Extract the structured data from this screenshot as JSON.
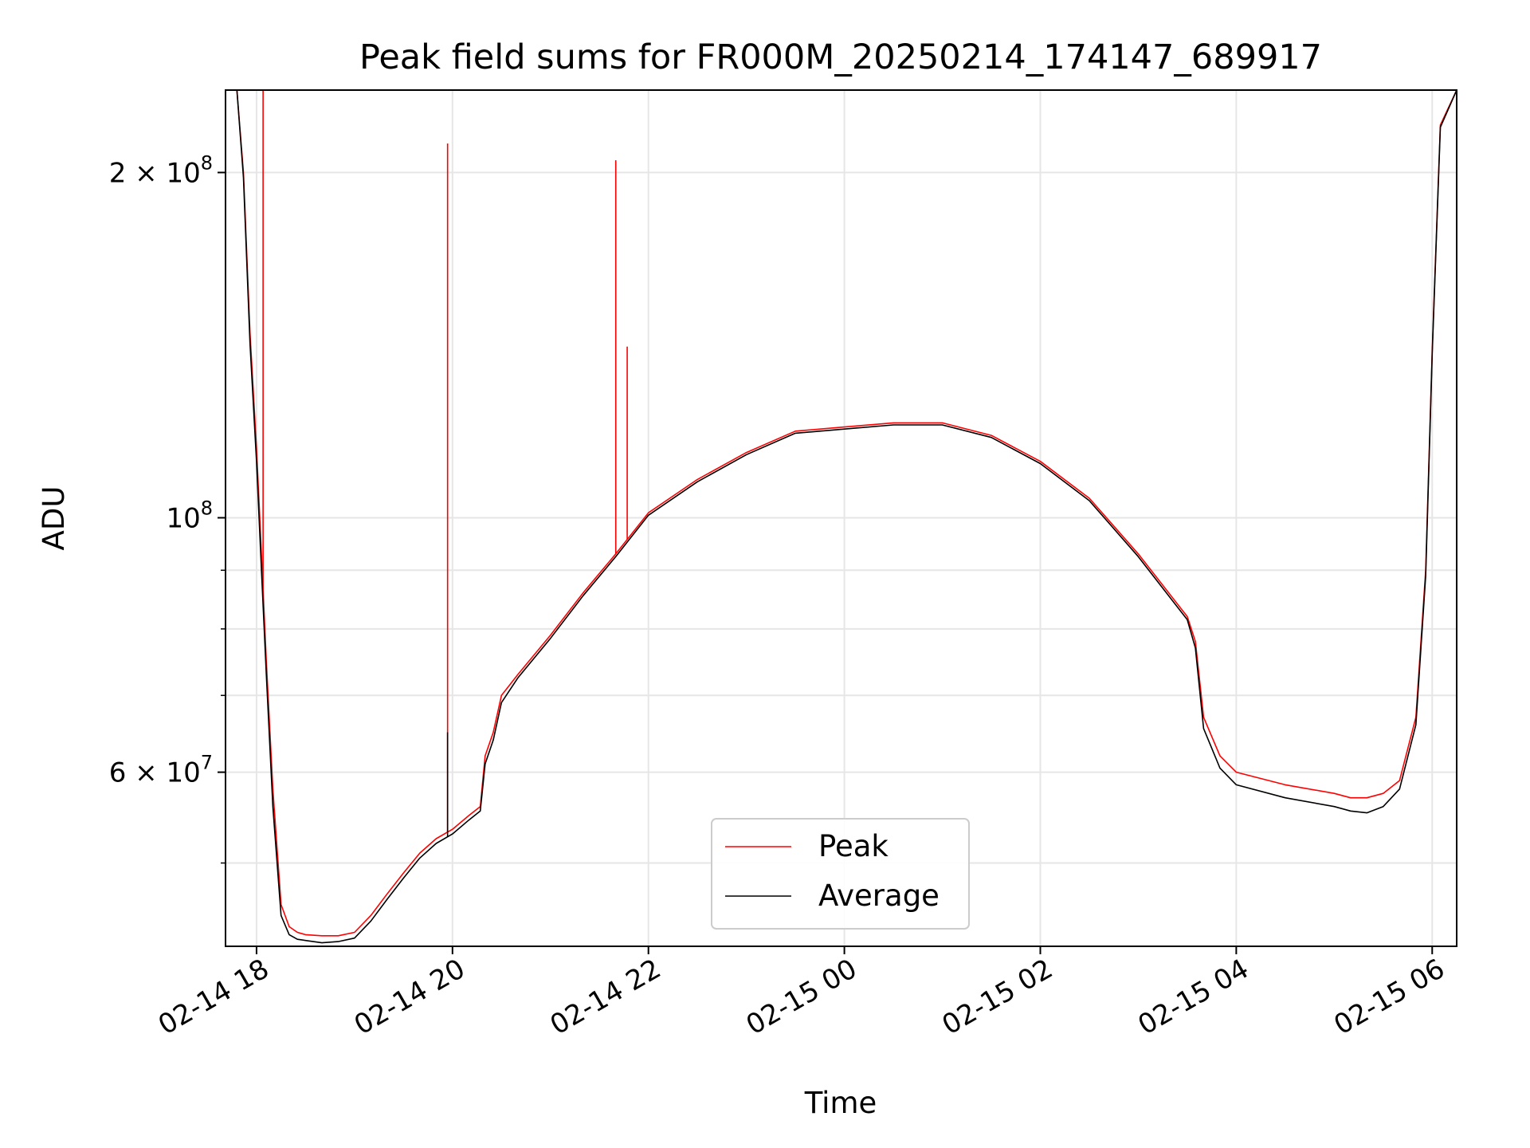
{
  "chart_data": {
    "type": "line",
    "title": "Peak field sums for FR000M_20250214_174147_689917",
    "xlabel": "Time",
    "ylabel": "ADU",
    "yscale": "log",
    "xlim": [
      "02-14 17:41",
      "02-15 06:15"
    ],
    "ylim": [
      42300000,
      236000000
    ],
    "grid": true,
    "legend_position": "lower center",
    "x_ticks": [
      "02-14 18",
      "02-14 20",
      "02-14 22",
      "02-15 00",
      "02-15 02",
      "02-15 04",
      "02-15 06"
    ],
    "y_ticks": [
      {
        "value": 200000000,
        "label_base": "2 × 10",
        "label_exp": "8"
      },
      {
        "value": 100000000,
        "label_base": "10",
        "label_exp": "8"
      },
      {
        "value": 60000000,
        "label_base": "6 × 10",
        "label_exp": "7"
      }
    ],
    "x": [
      "02-14 17:41",
      "02-14 17:48",
      "02-14 17:52",
      "02-14 17:56",
      "02-14 18:00",
      "02-14 18:03",
      "02-14 18:06",
      "02-14 18:10",
      "02-14 18:15",
      "02-14 18:20",
      "02-14 18:25",
      "02-14 18:30",
      "02-14 18:40",
      "02-14 18:50",
      "02-14 19:00",
      "02-14 19:10",
      "02-14 19:20",
      "02-14 19:30",
      "02-14 19:40",
      "02-14 19:50",
      "02-14 20:00",
      "02-14 20:10",
      "02-14 20:17",
      "02-14 20:20",
      "02-14 20:25",
      "02-14 20:30",
      "02-14 20:40",
      "02-14 21:00",
      "02-14 21:20",
      "02-14 21:40",
      "02-14 22:00",
      "02-14 22:30",
      "02-14 23:00",
      "02-14 23:30",
      "02-15 00:00",
      "02-15 00:30",
      "02-15 01:00",
      "02-15 01:30",
      "02-15 02:00",
      "02-15 02:30",
      "02-15 03:00",
      "02-15 03:30",
      "02-15 03:35",
      "02-15 03:40",
      "02-15 03:50",
      "02-15 04:00",
      "02-15 04:30",
      "02-15 05:00",
      "02-15 05:10",
      "02-15 05:20",
      "02-15 05:30",
      "02-15 05:40",
      "02-15 05:50",
      "02-15 05:56",
      "02-15 06:00",
      "02-15 06:05",
      "02-15 06:15"
    ],
    "series": [
      {
        "name": "Peak",
        "color": "#ff0000",
        "values": [
          236000000,
          236000000,
          200000000,
          145000000,
          115000000,
          93000000,
          75000000,
          58000000,
          46000000,
          44000000,
          43500000,
          43300000,
          43200000,
          43200000,
          43500000,
          45000000,
          47000000,
          49000000,
          51000000,
          52500000,
          53500000,
          55000000,
          56000000,
          62000000,
          65000000,
          70000000,
          73000000,
          79000000,
          86000000,
          93000000,
          101000000,
          108000000,
          114000000,
          119000000,
          120000000,
          121000000,
          121000000,
          118000000,
          112000000,
          104000000,
          93000000,
          82000000,
          78000000,
          67000000,
          62000000,
          60000000,
          58500000,
          57500000,
          57000000,
          57000000,
          57500000,
          59000000,
          67000000,
          90000000,
          140000000,
          220000000,
          236000000
        ],
        "spikes": [
          {
            "x": "02-14 18:04",
            "value": 236000000
          },
          {
            "x": "02-14 19:57",
            "value": 212000000
          },
          {
            "x": "02-14 21:40",
            "value": 205000000
          },
          {
            "x": "02-14 21:47",
            "value": 141000000
          }
        ]
      },
      {
        "name": "Average",
        "color": "#000000",
        "values": [
          236000000,
          236000000,
          198000000,
          142000000,
          112000000,
          90000000,
          73000000,
          56000000,
          45000000,
          43300000,
          42900000,
          42800000,
          42600000,
          42700000,
          43000000,
          44500000,
          46500000,
          48500000,
          50500000,
          52000000,
          53000000,
          54500000,
          55500000,
          61000000,
          64000000,
          69000000,
          72500000,
          78500000,
          85500000,
          92500000,
          100500000,
          107500000,
          113500000,
          118500000,
          119500000,
          120500000,
          120500000,
          117500000,
          111500000,
          103500000,
          92500000,
          81500000,
          77000000,
          65500000,
          60500000,
          58500000,
          57000000,
          56000000,
          55500000,
          55300000,
          56000000,
          58000000,
          66000000,
          89000000,
          139000000,
          219000000,
          236000000
        ],
        "spikes": [
          {
            "x": "02-14 19:57",
            "value": 65000000
          }
        ]
      }
    ]
  }
}
